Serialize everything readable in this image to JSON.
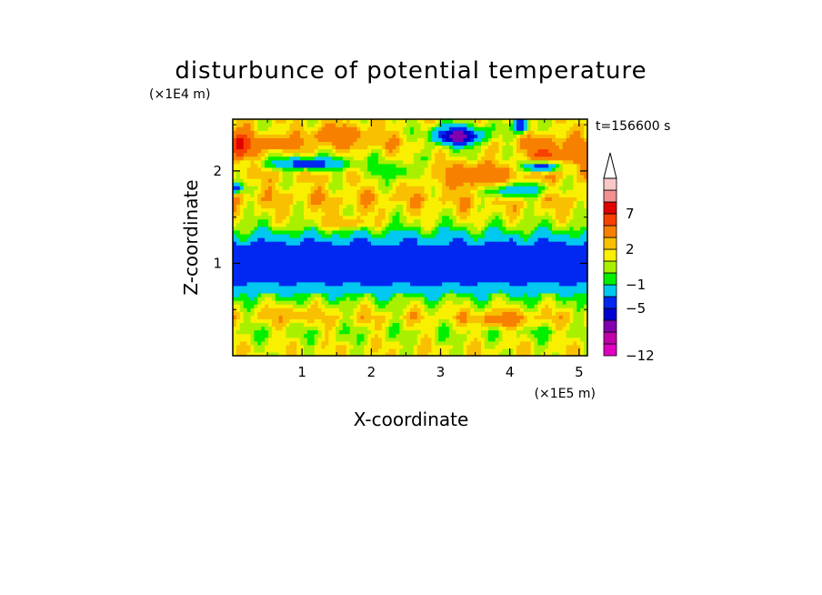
{
  "chart_data": {
    "type": "heatmap",
    "title": "disturbunce of potential temperature",
    "xlabel": "X-coordinate",
    "ylabel": "Z-coordinate",
    "x_unit": "(×1E5 m)",
    "y_unit": "(×1E4 m)",
    "time_label": "t=156600 s",
    "xlim": [
      0,
      5.12
    ],
    "ylim": [
      0,
      2.56
    ],
    "x_ticks": [
      1,
      2,
      3,
      4,
      5
    ],
    "y_ticks": [
      1,
      2
    ],
    "x_tick_labels": [
      "1",
      "2",
      "3",
      "4",
      "5"
    ],
    "y_tick_labels": [
      "1",
      "2"
    ],
    "levels": [
      -12,
      -11,
      -9,
      -7,
      -5,
      -3,
      -1,
      0,
      1,
      2,
      3,
      5,
      7,
      9,
      11
    ],
    "colors": [
      "#e000c0",
      "#c000a8",
      "#8000b0",
      "#0000d0",
      "#0028f0",
      "#00c8f0",
      "#00f000",
      "#a8f000",
      "#f8f000",
      "#f8c000",
      "#f88000",
      "#f84000",
      "#e00000",
      "#f09090",
      "#f8c8c8"
    ],
    "colorbar_labels": [
      {
        "value": 7,
        "text": "7"
      },
      {
        "value": 2,
        "text": "2"
      },
      {
        "value": -1,
        "text": "−1"
      },
      {
        "value": -5,
        "text": "−5"
      },
      {
        "value": -12,
        "text": "−12"
      }
    ],
    "field_bands": [
      {
        "z": 0.1,
        "value": 1.5
      },
      {
        "z": 0.25,
        "value": 0.5
      },
      {
        "z": 0.42,
        "value": 2.0
      },
      {
        "z": 0.58,
        "value": 0.5
      },
      {
        "z": 0.72,
        "value": -1.5
      },
      {
        "z": 0.82,
        "value": -4.0
      },
      {
        "z": 1.0,
        "value": -4.5
      },
      {
        "z": 1.18,
        "value": -4.0
      },
      {
        "z": 1.3,
        "value": -1.5
      },
      {
        "z": 1.42,
        "value": 0.5
      },
      {
        "z": 1.55,
        "value": 1.5
      },
      {
        "z": 1.7,
        "value": 2.5
      },
      {
        "z": 1.85,
        "value": 1.5
      },
      {
        "z": 2.0,
        "value": 2.5
      },
      {
        "z": 2.15,
        "value": 1.0
      },
      {
        "z": 2.3,
        "value": 2.5
      },
      {
        "z": 2.45,
        "value": 1.5
      }
    ],
    "field_features": [
      {
        "x": 3.25,
        "z": 2.38,
        "rx": 0.4,
        "rz": 0.12,
        "value": -6
      },
      {
        "x": 3.25,
        "z": 2.38,
        "rx": 0.18,
        "rz": 0.05,
        "value": -9
      },
      {
        "x": 1.1,
        "z": 2.08,
        "rx": 0.6,
        "rz": 0.07,
        "value": -4
      },
      {
        "x": 0.1,
        "z": 2.28,
        "rx": 0.18,
        "rz": 0.15,
        "value": 8
      },
      {
        "x": 0.05,
        "z": 1.82,
        "rx": 0.1,
        "rz": 0.05,
        "value": -4
      },
      {
        "x": 1.55,
        "z": 2.4,
        "rx": 0.4,
        "rz": 0.1,
        "value": 5
      },
      {
        "x": 0.65,
        "z": 2.3,
        "rx": 0.3,
        "rz": 0.08,
        "value": 4
      },
      {
        "x": 4.5,
        "z": 2.15,
        "rx": 0.25,
        "rz": 0.18,
        "value": 6
      },
      {
        "x": 4.45,
        "z": 2.05,
        "rx": 0.3,
        "rz": 0.06,
        "value": -5
      },
      {
        "x": 4.05,
        "z": 1.8,
        "rx": 0.45,
        "rz": 0.08,
        "value": -4
      },
      {
        "x": 4.15,
        "z": 2.5,
        "rx": 0.12,
        "rz": 0.08,
        "value": -5
      },
      {
        "x": 3.5,
        "z": 1.95,
        "rx": 0.6,
        "rz": 0.15,
        "value": 4
      },
      {
        "x": 2.3,
        "z": 2.0,
        "rx": 0.45,
        "rz": 0.1,
        "value": -1
      },
      {
        "x": 4.95,
        "z": 2.2,
        "rx": 0.2,
        "rz": 0.12,
        "value": 5
      },
      {
        "x": 3.9,
        "z": 0.4,
        "rx": 0.4,
        "rz": 0.08,
        "value": 4
      },
      {
        "x": 0.8,
        "z": 0.45,
        "rx": 0.35,
        "rz": 0.07,
        "value": 3
      },
      {
        "x": 4.45,
        "z": 0.25,
        "rx": 0.15,
        "rz": 0.05,
        "value": -1
      },
      {
        "x": 1.6,
        "z": 1.45,
        "rx": 0.4,
        "rz": 0.07,
        "value": 3
      }
    ]
  }
}
